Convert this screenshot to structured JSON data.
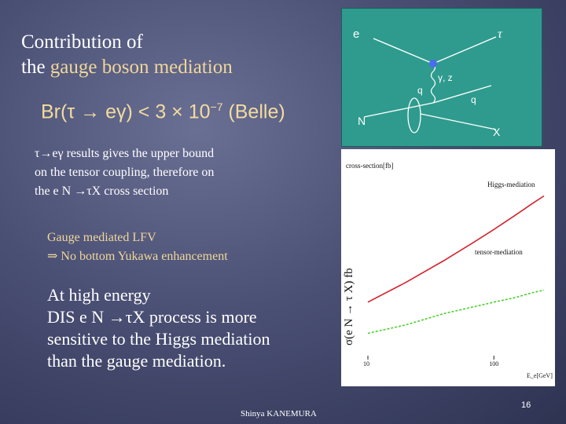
{
  "slide": {
    "title_line1": "Contribution of",
    "title_line2_prefix": "the ",
    "title_line2_accent": "gauge boson mediation",
    "formula": {
      "lhs": "Br(τ → eγ) < 3 × 10",
      "exponent": "−7",
      "rhs": " (Belle)"
    },
    "paragraph1": [
      "τ→eγ  results gives  the  upper bound",
      "on the tensor coupling, therefore on",
      "the e N →τX   cross section"
    ],
    "paragraph2": [
      "Gauge mediated LFV",
      "⇒  No bottom Yukawa enhancement"
    ],
    "paragraph3": [
      "At high energy",
      "DIS e N →τX   process is more",
      "sensitive to the Higgs mediation",
      "than the gauge mediation."
    ],
    "footer_author": "Shinya KANEMURA",
    "page_number": "16"
  },
  "feynman": {
    "labels": {
      "e": "e",
      "tau": "τ",
      "gamma_z": "γ, z",
      "q_in": "q",
      "q_out": "q",
      "n": "N",
      "x": "X"
    },
    "colors": {
      "background": "#2f9b8e",
      "vertex": "#4a6cf0"
    }
  },
  "chart_data": {
    "type": "line",
    "ylabel_top": "cross-section[fb]",
    "ylabel_side": "σ(e N → τ X) fb",
    "xlabel": "E_e[GeV]",
    "x_ticks": [
      "10",
      "100"
    ],
    "series": [
      {
        "name": "Higgs-mediation",
        "color": "#d2242e",
        "x": [
          10,
          20,
          40,
          70,
          100,
          150,
          200,
          250
        ],
        "y": [
          0.0007,
          0.003,
          0.015,
          0.06,
          0.15,
          0.45,
          1.0,
          1.8
        ]
      },
      {
        "name": "tensor-mediation",
        "color": "#4ccf2e",
        "x": [
          10,
          20,
          40,
          70,
          100,
          150,
          200,
          250
        ],
        "y": [
          7e-05,
          0.00013,
          0.0003,
          0.0005,
          0.0007,
          0.001,
          0.0014,
          0.0017
        ]
      }
    ],
    "xscale": "log",
    "yscale": "log",
    "xlim": [
      10,
      250
    ],
    "ylim": [
      1e-05,
      10
    ],
    "grid": false
  }
}
